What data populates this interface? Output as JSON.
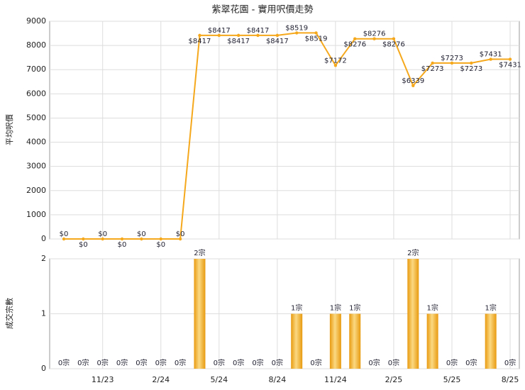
{
  "title": "紫翠花園 - 實用呎價走勢",
  "chart_data": [
    {
      "type": "line",
      "ylabel": "平均呎價",
      "color": "#f5a81c",
      "values": [
        0,
        0,
        0,
        0,
        0,
        0,
        0,
        8417,
        8417,
        8417,
        8417,
        8417,
        8519,
        8519,
        7172,
        8276,
        8276,
        8276,
        6339,
        7273,
        7273,
        7273,
        7431,
        7431
      ],
      "value_labels": [
        "$0",
        "$0",
        "$0",
        "$0",
        "$0",
        "$0",
        "$0",
        "$8417",
        "$8417",
        "$8417",
        "$8417",
        "$8417",
        "$8519",
        "$8519",
        "$7172",
        "$8276",
        "$8276",
        "$8276",
        "$6339",
        "$7273",
        "$7273",
        "$7273",
        "$7431",
        "$7431"
      ],
      "ylim": [
        0,
        9000
      ],
      "yticks": [
        0,
        1000,
        2000,
        3000,
        4000,
        5000,
        6000,
        7000,
        8000,
        9000
      ],
      "grid": true
    },
    {
      "type": "bar",
      "ylabel": "成交宗數",
      "color": "#f0a818",
      "categories": [
        null,
        null,
        "11/23",
        null,
        null,
        "2/24",
        null,
        null,
        "5/24",
        null,
        null,
        "8/24",
        null,
        null,
        "11/24",
        null,
        null,
        "2/25",
        null,
        null,
        "5/25",
        null,
        null,
        "8/25"
      ],
      "values": [
        0,
        0,
        0,
        0,
        0,
        0,
        0,
        2,
        0,
        0,
        0,
        0,
        1,
        0,
        1,
        1,
        0,
        0,
        2,
        1,
        0,
        0,
        1,
        0
      ],
      "value_labels": [
        "0宗",
        "0宗",
        "0宗",
        "0宗",
        "0宗",
        "0宗",
        "0宗",
        "2宗",
        "0宗",
        "0宗",
        "0宗",
        "0宗",
        "1宗",
        "0宗",
        "1宗",
        "1宗",
        "0宗",
        "0宗",
        "2宗",
        "1宗",
        "0宗",
        "0宗",
        "1宗",
        "0宗"
      ],
      "ylim": [
        0,
        2
      ],
      "yticks": [
        0,
        1,
        2
      ],
      "grid": true
    }
  ]
}
